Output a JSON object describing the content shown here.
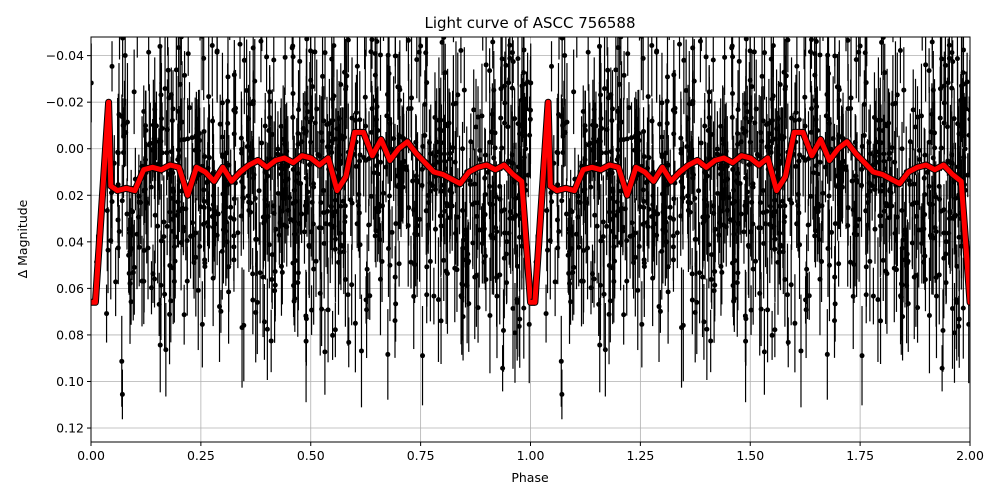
{
  "chart_data": {
    "type": "scatter",
    "title": "Light curve of ASCC 756588",
    "xlabel": "Phase",
    "ylabel": "Δ Magnitude",
    "xlim": [
      0.0,
      2.0
    ],
    "ylim": [
      0.126,
      -0.048
    ],
    "y_inverted": true,
    "grid": true,
    "x_ticks": [
      "0.00",
      "0.25",
      "0.50",
      "0.75",
      "1.00",
      "1.25",
      "1.50",
      "1.75",
      "2.00"
    ],
    "x_tick_values": [
      0.0,
      0.25,
      0.5,
      0.75,
      1.0,
      1.25,
      1.5,
      1.75,
      2.0
    ],
    "y_ticks": [
      "−0.04",
      "−0.02",
      "0.00",
      "0.02",
      "0.04",
      "0.06",
      "0.08",
      "0.10",
      "0.12"
    ],
    "y_tick_values": [
      -0.04,
      -0.02,
      0.0,
      0.02,
      0.04,
      0.06,
      0.08,
      0.1,
      0.12
    ],
    "series": [
      {
        "kind": "points_with_error_bars",
        "color": "#000000",
        "phase_range": [
          0.0,
          1.0
        ],
        "mean_magnitude": 0.015,
        "scatter_std": 0.032,
        "typical_error": 0.018,
        "repeated_at_phase_plus_one": true
      },
      {
        "kind": "binned_curve",
        "color": "#ff0000",
        "edge_color": "#000000",
        "x": [
          0.0,
          0.01,
          0.04,
          0.045,
          0.06,
          0.08,
          0.1,
          0.12,
          0.14,
          0.16,
          0.18,
          0.2,
          0.22,
          0.24,
          0.26,
          0.28,
          0.3,
          0.32,
          0.34,
          0.36,
          0.38,
          0.4,
          0.42,
          0.44,
          0.46,
          0.48,
          0.5,
          0.52,
          0.54,
          0.56,
          0.58,
          0.6,
          0.62,
          0.64,
          0.66,
          0.68,
          0.7,
          0.72,
          0.74,
          0.76,
          0.78,
          0.8,
          0.82,
          0.84,
          0.86,
          0.88,
          0.9,
          0.92,
          0.94,
          0.96,
          0.98,
          0.99,
          1.0,
          1.01
        ],
        "y": [
          0.066,
          0.066,
          -0.02,
          0.016,
          0.018,
          0.017,
          0.018,
          0.009,
          0.008,
          0.009,
          0.007,
          0.008,
          0.02,
          0.008,
          0.01,
          0.014,
          0.008,
          0.014,
          0.01,
          0.007,
          0.005,
          0.008,
          0.005,
          0.004,
          0.006,
          0.003,
          0.004,
          0.007,
          0.004,
          0.018,
          0.012,
          -0.007,
          -0.007,
          0.003,
          -0.004,
          0.005,
          0.0,
          -0.003,
          0.002,
          0.006,
          0.01,
          0.011,
          0.013,
          0.015,
          0.01,
          0.008,
          0.007,
          0.009,
          0.007,
          0.011,
          0.014,
          0.04,
          0.066,
          0.066
        ],
        "repeated_at_phase_plus_one": true
      }
    ]
  }
}
